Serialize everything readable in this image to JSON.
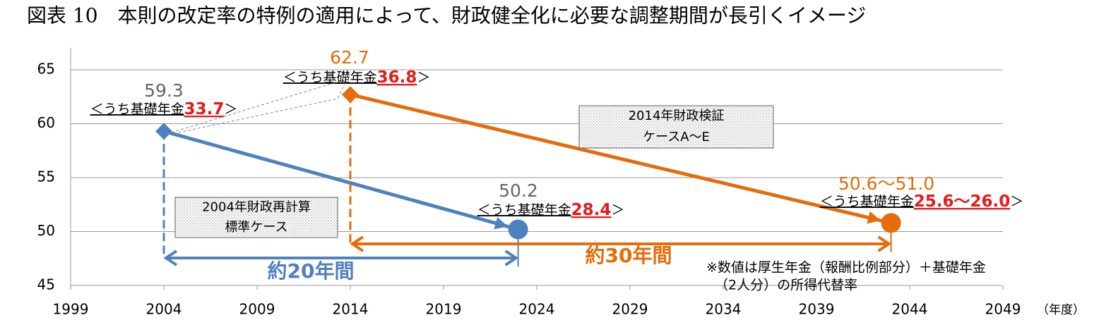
{
  "chart_data": {
    "type": "line",
    "title": "図表 10　本則の改定率の特例の適用によって、財政健全化に必要な調整期間が長引くイメージ",
    "xlim": [
      1999,
      2049
    ],
    "xticks": [
      1999,
      2004,
      2009,
      2014,
      2019,
      2024,
      2029,
      2034,
      2039,
      2044,
      2049
    ],
    "x_unit": "（年度）",
    "ylim": [
      45,
      65
    ],
    "yticks": [
      45,
      50,
      55,
      60,
      65
    ],
    "grid": true,
    "sub_label_prefix": "＜うち基礎年金",
    "sub_label_suffix": "＞",
    "series": [
      {
        "name_lines": [
          "2004年財政再計算",
          "標準ケース"
        ],
        "color": "#4f81bd",
        "x": [
          2004,
          2023
        ],
        "values": [
          59.3,
          50.2
        ],
        "sub_values": [
          33.7,
          28.4
        ],
        "span_label": "約20年間"
      },
      {
        "name_lines": [
          "2014年財政検証",
          "ケースA～E"
        ],
        "color": "#e46c0a",
        "x": [
          2014,
          2043
        ],
        "values": [
          62.7,
          50.8
        ],
        "value_labels": [
          "62.7",
          "50.6～51.0"
        ],
        "sub_values": [
          36.8,
          25.8
        ],
        "sub_value_labels": [
          "36.8",
          "25.6～26.0"
        ],
        "span_label": "約30年間"
      }
    ],
    "note_lines": [
      "※数値は厚生年金（報酬比例部分）＋基礎年金",
      "（2人分）の所得代替率"
    ]
  }
}
